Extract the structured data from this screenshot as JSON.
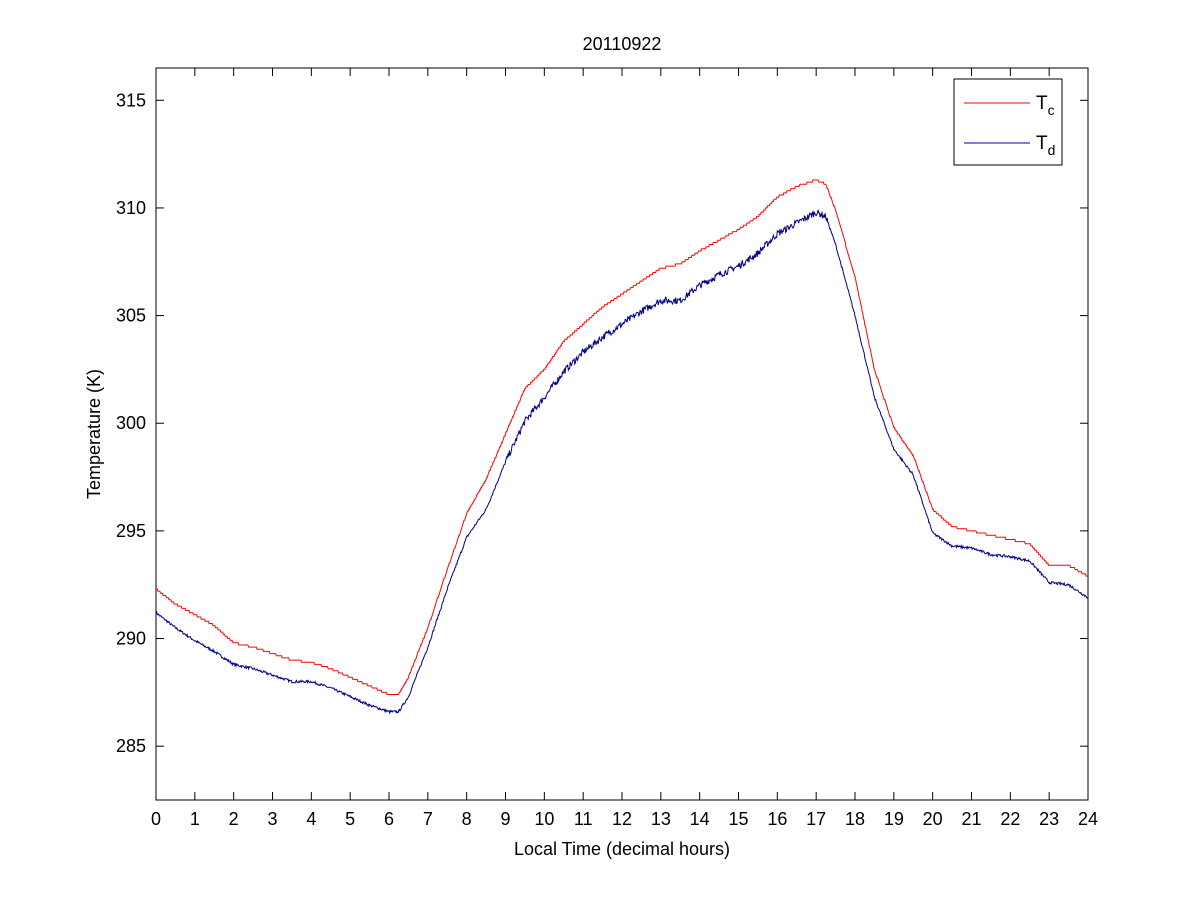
{
  "chart_data": {
    "type": "line",
    "title": "20110922",
    "xlabel": "Local Time (decimal hours)",
    "ylabel": "Temperature (K)",
    "xlim": [
      0,
      24
    ],
    "ylim": [
      282.5,
      316.5
    ],
    "xticks": [
      0,
      1,
      2,
      3,
      4,
      5,
      6,
      7,
      8,
      9,
      10,
      11,
      12,
      13,
      14,
      15,
      16,
      17,
      18,
      19,
      20,
      21,
      22,
      23,
      24
    ],
    "yticks": [
      285,
      290,
      295,
      300,
      305,
      310,
      315
    ],
    "grid": false,
    "legend_position": "top-right",
    "series": [
      {
        "name": "T_c",
        "legend_main": "T",
        "legend_sub": "c",
        "color": "#ff0000",
        "x": [
          0,
          0.5,
          1,
          1.5,
          2,
          2.5,
          3,
          3.5,
          4,
          4.5,
          5,
          5.5,
          6,
          6.25,
          6.5,
          7,
          7.5,
          8,
          8.5,
          9,
          9.5,
          10,
          10.5,
          11,
          11.5,
          12,
          12.5,
          13,
          13.5,
          14,
          14.5,
          15,
          15.5,
          16,
          16.5,
          17,
          17.25,
          17.5,
          18,
          18.5,
          19,
          19.5,
          20,
          20.5,
          21,
          21.5,
          22,
          22.5,
          23,
          23.5,
          24
        ],
        "y": [
          292.3,
          291.6,
          291.1,
          290.6,
          289.8,
          289.6,
          289.3,
          289.0,
          288.9,
          288.6,
          288.2,
          287.8,
          287.4,
          287.4,
          288.2,
          290.5,
          293.2,
          295.8,
          297.4,
          299.5,
          301.6,
          302.5,
          303.8,
          304.6,
          305.4,
          306.0,
          306.6,
          307.2,
          307.4,
          308.0,
          308.5,
          309.0,
          309.6,
          310.5,
          311.0,
          311.3,
          311.1,
          309.9,
          306.8,
          302.5,
          299.8,
          298.5,
          296.0,
          295.2,
          295.0,
          294.8,
          294.6,
          294.4,
          293.4,
          293.4,
          292.9
        ]
      },
      {
        "name": "T_d",
        "legend_main": "T",
        "legend_sub": "d",
        "color": "#00008b",
        "x": [
          0,
          0.5,
          1,
          1.5,
          2,
          2.5,
          3,
          3.5,
          4,
          4.5,
          5,
          5.5,
          6,
          6.25,
          6.5,
          7,
          7.5,
          8,
          8.5,
          9,
          9.5,
          10,
          10.5,
          11,
          11.5,
          12,
          12.5,
          13,
          13.5,
          14,
          14.5,
          15,
          15.5,
          16,
          16.5,
          17,
          17.25,
          17.5,
          18,
          18.5,
          19,
          19.5,
          20,
          20.5,
          21,
          21.5,
          22,
          22.5,
          23,
          23.5,
          24
        ],
        "y": [
          291.2,
          290.5,
          289.9,
          289.4,
          288.8,
          288.6,
          288.3,
          288.0,
          288.0,
          287.7,
          287.3,
          286.9,
          286.6,
          286.6,
          287.3,
          289.6,
          292.3,
          294.7,
          296.0,
          298.2,
          300.1,
          301.2,
          302.4,
          303.3,
          304.0,
          304.6,
          305.2,
          305.7,
          305.7,
          306.4,
          306.9,
          307.3,
          307.9,
          308.8,
          309.3,
          309.8,
          309.6,
          308.3,
          305.0,
          301.2,
          298.8,
          297.6,
          294.9,
          294.3,
          294.2,
          293.9,
          293.8,
          293.6,
          292.6,
          292.5,
          291.9
        ]
      }
    ]
  }
}
